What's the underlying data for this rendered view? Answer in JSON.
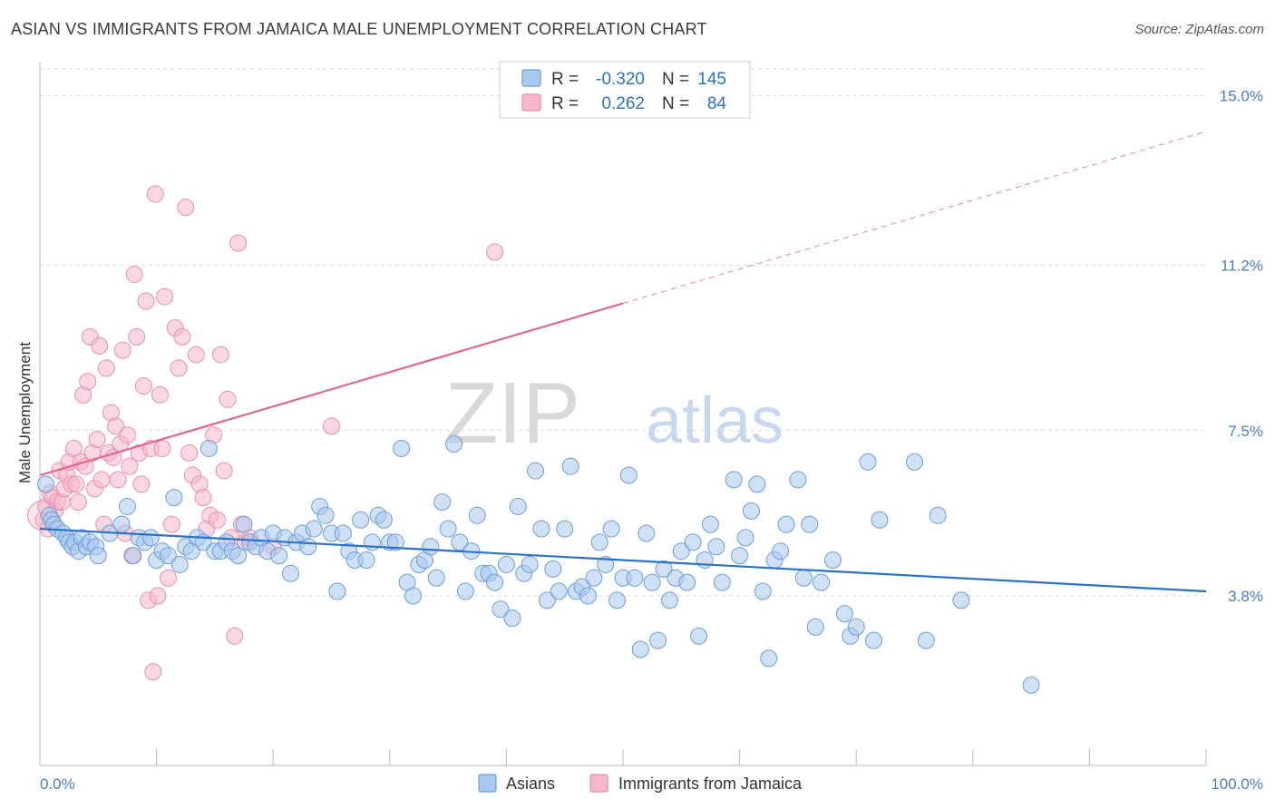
{
  "title": "ASIAN VS IMMIGRANTS FROM JAMAICA MALE UNEMPLOYMENT CORRELATION CHART",
  "source": "Source: ZipAtlas.com",
  "watermark": {
    "zip": "ZIP",
    "atlas": "atlas"
  },
  "colors": {
    "blue_fill": "#a9c8ee",
    "blue_stroke": "#6a9fd8",
    "blue_line": "#2a72c9",
    "pink_fill": "#f5b8cb",
    "pink_stroke": "#e890ab",
    "pink_line": "#e0678f",
    "tick_label": "#4a7cc9",
    "grid": "#d9d9d9"
  },
  "legend_top": {
    "rows": [
      {
        "r_label": "R =",
        "r_value": "-0.320",
        "n_label": "N =",
        "n_value": "145"
      },
      {
        "r_label": "R =",
        "r_value": "0.262",
        "n_label": "N =",
        "n_value": "84"
      }
    ]
  },
  "legend_bottom": {
    "items": [
      "Asians",
      "Immigrants from Jamaica"
    ]
  },
  "chart_data": {
    "type": "scatter",
    "ylabel": "Male Unemployment",
    "xlabel": "",
    "xlim": [
      0,
      100
    ],
    "ylim": [
      0,
      15.6
    ],
    "x_tick_labels": [
      "0.0%",
      "100.0%"
    ],
    "y_ticks": [
      3.8,
      7.5,
      11.2,
      15.0
    ],
    "y_tick_labels": [
      "3.8%",
      "7.5%",
      "11.2%",
      "15.0%"
    ],
    "grid": true,
    "series": [
      {
        "name": "Asians",
        "r": -0.32,
        "n": 145,
        "trend": {
          "x": [
            0,
            100
          ],
          "y": [
            5.3,
            3.9
          ],
          "dashed_from": null
        },
        "points": [
          [
            0.5,
            6.3
          ],
          [
            0.8,
            5.6
          ],
          [
            1.0,
            5.5
          ],
          [
            1.2,
            5.4
          ],
          [
            1.5,
            5.3
          ],
          [
            2.0,
            5.2
          ],
          [
            2.3,
            5.1
          ],
          [
            2.5,
            5.0
          ],
          [
            2.8,
            4.9
          ],
          [
            3.0,
            5.0
          ],
          [
            3.3,
            4.8
          ],
          [
            3.6,
            5.1
          ],
          [
            4.0,
            4.9
          ],
          [
            4.3,
            5.0
          ],
          [
            4.8,
            4.9
          ],
          [
            5.0,
            4.7
          ],
          [
            6.0,
            5.2
          ],
          [
            7.0,
            5.4
          ],
          [
            7.5,
            5.8
          ],
          [
            8.0,
            4.7
          ],
          [
            8.5,
            5.1
          ],
          [
            9.0,
            5.0
          ],
          [
            9.5,
            5.1
          ],
          [
            10.0,
            4.6
          ],
          [
            10.5,
            4.8
          ],
          [
            11.0,
            4.7
          ],
          [
            11.5,
            6.0
          ],
          [
            12.0,
            4.5
          ],
          [
            12.5,
            4.9
          ],
          [
            13.0,
            4.8
          ],
          [
            13.5,
            5.1
          ],
          [
            14.0,
            5.0
          ],
          [
            14.5,
            7.1
          ],
          [
            15.0,
            4.8
          ],
          [
            15.5,
            4.8
          ],
          [
            16.0,
            5.0
          ],
          [
            16.5,
            4.8
          ],
          [
            17.0,
            4.7
          ],
          [
            17.5,
            5.4
          ],
          [
            18.0,
            5.0
          ],
          [
            18.5,
            4.9
          ],
          [
            19.0,
            5.1
          ],
          [
            19.5,
            4.8
          ],
          [
            20.0,
            5.2
          ],
          [
            20.5,
            4.7
          ],
          [
            21.0,
            5.1
          ],
          [
            21.5,
            4.3
          ],
          [
            22.0,
            5.0
          ],
          [
            22.5,
            5.2
          ],
          [
            23.0,
            4.9
          ],
          [
            23.5,
            5.3
          ],
          [
            24.0,
            5.8
          ],
          [
            24.5,
            5.6
          ],
          [
            25.0,
            5.2
          ],
          [
            25.5,
            3.9
          ],
          [
            26.0,
            5.2
          ],
          [
            26.5,
            4.8
          ],
          [
            27.0,
            4.6
          ],
          [
            27.5,
            5.5
          ],
          [
            28.0,
            4.6
          ],
          [
            28.5,
            5.0
          ],
          [
            29.0,
            5.6
          ],
          [
            29.5,
            5.5
          ],
          [
            30.0,
            5.0
          ],
          [
            30.5,
            5.0
          ],
          [
            31.0,
            7.1
          ],
          [
            31.5,
            4.1
          ],
          [
            32.0,
            3.8
          ],
          [
            32.5,
            4.5
          ],
          [
            33.0,
            4.6
          ],
          [
            33.5,
            4.9
          ],
          [
            34.0,
            4.2
          ],
          [
            34.5,
            5.9
          ],
          [
            35.0,
            5.3
          ],
          [
            35.5,
            7.2
          ],
          [
            36.0,
            5.0
          ],
          [
            36.5,
            3.9
          ],
          [
            37.0,
            4.8
          ],
          [
            37.5,
            5.6
          ],
          [
            38.0,
            4.3
          ],
          [
            38.5,
            4.3
          ],
          [
            39.0,
            4.1
          ],
          [
            39.5,
            3.5
          ],
          [
            40.0,
            4.5
          ],
          [
            40.5,
            3.3
          ],
          [
            41.0,
            5.8
          ],
          [
            41.5,
            4.3
          ],
          [
            42.0,
            4.5
          ],
          [
            42.5,
            6.6
          ],
          [
            43.0,
            5.3
          ],
          [
            43.5,
            3.7
          ],
          [
            44.0,
            4.4
          ],
          [
            44.5,
            3.9
          ],
          [
            45.0,
            5.3
          ],
          [
            45.5,
            6.7
          ],
          [
            46.0,
            3.9
          ],
          [
            46.5,
            4.0
          ],
          [
            47.0,
            3.8
          ],
          [
            47.5,
            4.2
          ],
          [
            48.0,
            5.0
          ],
          [
            48.5,
            4.5
          ],
          [
            49.0,
            5.3
          ],
          [
            49.5,
            3.7
          ],
          [
            50.0,
            4.2
          ],
          [
            50.5,
            6.5
          ],
          [
            51.0,
            4.2
          ],
          [
            51.5,
            2.6
          ],
          [
            52.0,
            5.2
          ],
          [
            52.5,
            4.1
          ],
          [
            53.0,
            2.8
          ],
          [
            53.5,
            4.4
          ],
          [
            54.0,
            3.7
          ],
          [
            54.5,
            4.2
          ],
          [
            55.0,
            4.8
          ],
          [
            55.5,
            4.1
          ],
          [
            56.0,
            5.0
          ],
          [
            56.5,
            2.9
          ],
          [
            57.0,
            4.6
          ],
          [
            57.5,
            5.4
          ],
          [
            58.0,
            4.9
          ],
          [
            58.5,
            4.1
          ],
          [
            59.5,
            6.4
          ],
          [
            60.0,
            4.7
          ],
          [
            60.5,
            5.1
          ],
          [
            61.0,
            5.7
          ],
          [
            61.5,
            6.3
          ],
          [
            62.0,
            3.9
          ],
          [
            62.5,
            2.4
          ],
          [
            63.0,
            4.6
          ],
          [
            63.5,
            4.8
          ],
          [
            64.0,
            5.4
          ],
          [
            65.0,
            6.4
          ],
          [
            65.5,
            4.2
          ],
          [
            66.0,
            5.4
          ],
          [
            66.5,
            3.1
          ],
          [
            67.0,
            4.1
          ],
          [
            68.0,
            4.6
          ],
          [
            69.0,
            3.4
          ],
          [
            69.5,
            2.9
          ],
          [
            70.0,
            3.1
          ],
          [
            71.0,
            6.8
          ],
          [
            71.5,
            2.8
          ],
          [
            72.0,
            5.5
          ],
          [
            75.0,
            6.8
          ],
          [
            76.0,
            2.8
          ],
          [
            77.0,
            5.6
          ],
          [
            79.0,
            3.7
          ],
          [
            85.0,
            1.8
          ]
        ]
      },
      {
        "name": "Immigrants from Jamaica",
        "r": 0.262,
        "n": 84,
        "trend": {
          "x": [
            0,
            100
          ],
          "y": [
            6.5,
            14.2
          ],
          "dashed_from": 50
        },
        "points": [
          [
            0.3,
            5.5
          ],
          [
            0.5,
            5.8
          ],
          [
            0.7,
            5.3
          ],
          [
            0.9,
            6.1
          ],
          [
            1.1,
            6.0
          ],
          [
            1.3,
            5.7
          ],
          [
            1.5,
            5.9
          ],
          [
            1.7,
            6.6
          ],
          [
            1.9,
            5.9
          ],
          [
            2.1,
            6.2
          ],
          [
            2.3,
            6.5
          ],
          [
            2.5,
            6.8
          ],
          [
            2.7,
            6.3
          ],
          [
            2.9,
            7.1
          ],
          [
            3.1,
            6.3
          ],
          [
            3.3,
            5.9
          ],
          [
            3.5,
            6.8
          ],
          [
            3.7,
            8.3
          ],
          [
            3.9,
            6.7
          ],
          [
            4.1,
            8.6
          ],
          [
            4.3,
            9.6
          ],
          [
            4.5,
            7.0
          ],
          [
            4.7,
            6.2
          ],
          [
            4.9,
            7.3
          ],
          [
            5.1,
            9.4
          ],
          [
            5.3,
            6.4
          ],
          [
            5.5,
            5.4
          ],
          [
            5.7,
            8.9
          ],
          [
            5.9,
            7.0
          ],
          [
            6.1,
            7.9
          ],
          [
            6.3,
            6.9
          ],
          [
            6.5,
            7.6
          ],
          [
            6.7,
            6.4
          ],
          [
            6.9,
            7.2
          ],
          [
            7.1,
            9.3
          ],
          [
            7.3,
            5.2
          ],
          [
            7.5,
            7.4
          ],
          [
            7.7,
            6.7
          ],
          [
            7.9,
            4.7
          ],
          [
            8.1,
            11.0
          ],
          [
            8.3,
            9.6
          ],
          [
            8.5,
            7.0
          ],
          [
            8.7,
            6.3
          ],
          [
            8.9,
            8.5
          ],
          [
            9.1,
            10.4
          ],
          [
            9.3,
            3.7
          ],
          [
            9.5,
            7.1
          ],
          [
            9.7,
            2.1
          ],
          [
            9.9,
            12.8
          ],
          [
            10.1,
            3.8
          ],
          [
            10.3,
            8.3
          ],
          [
            10.5,
            7.1
          ],
          [
            10.7,
            10.5
          ],
          [
            11.0,
            4.2
          ],
          [
            11.3,
            5.4
          ],
          [
            11.6,
            9.8
          ],
          [
            11.9,
            8.9
          ],
          [
            12.2,
            9.6
          ],
          [
            12.5,
            12.5
          ],
          [
            12.8,
            7.0
          ],
          [
            13.1,
            6.5
          ],
          [
            13.4,
            9.2
          ],
          [
            13.7,
            6.3
          ],
          [
            14.0,
            6.0
          ],
          [
            14.3,
            5.3
          ],
          [
            14.6,
            5.6
          ],
          [
            14.9,
            7.4
          ],
          [
            15.2,
            5.5
          ],
          [
            15.5,
            9.2
          ],
          [
            15.8,
            6.6
          ],
          [
            16.1,
            8.2
          ],
          [
            16.4,
            5.1
          ],
          [
            16.7,
            2.9
          ],
          [
            17.0,
            11.7
          ],
          [
            17.3,
            5.4
          ],
          [
            17.6,
            5.0
          ],
          [
            18.0,
            5.1
          ],
          [
            20.0,
            4.9
          ],
          [
            25.0,
            7.6
          ],
          [
            39.0,
            11.5
          ]
        ]
      }
    ]
  }
}
